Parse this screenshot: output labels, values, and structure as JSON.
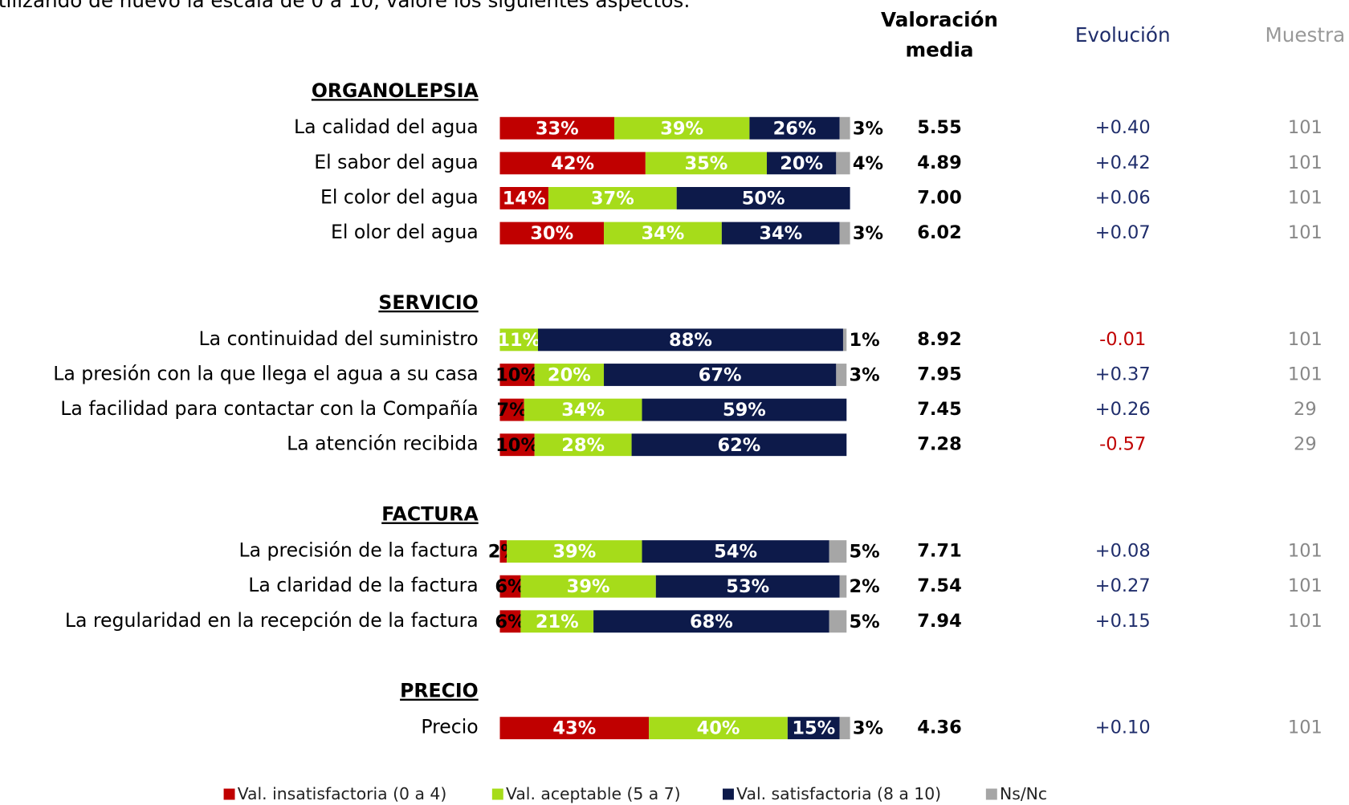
{
  "chart_data": {
    "type": "stacked_bar",
    "subtitle": "tilizando de nuevo la escala de 0 a 10, valore los siguientes aspectos:",
    "column_headers": {
      "mean": [
        "Valoración",
        "media"
      ],
      "evolution": "Evolución",
      "sample": "Muestra"
    },
    "xlim": [
      0,
      100
    ],
    "negative_color": "#c00000",
    "series": [
      {
        "name": "Val. insatisfactoria (0 a 4)",
        "color": "#c00000"
      },
      {
        "name": "Val. aceptable (5 a 7)",
        "color": "#a6dc1a"
      },
      {
        "name": "Val. satisfactoria (8 a 10)",
        "color": "#0d1a4a"
      },
      {
        "name": "Ns/Nc",
        "color": "#a6a6a6"
      }
    ],
    "groups": [
      {
        "title": "ORGANOLEPSIA",
        "categories": [
          "La calidad del agua",
          "El sabor del agua",
          "El color del agua",
          "El olor del agua"
        ],
        "series": [
          {
            "values": [
              33,
              42,
              14,
              30
            ],
            "value_labels": [
              "33%",
              "42%",
              "14%",
              "30%"
            ]
          },
          {
            "values": [
              39,
              35,
              37,
              34
            ],
            "value_labels": [
              "39%",
              "35%",
              "37%",
              "34%"
            ]
          },
          {
            "values": [
              26,
              20,
              50,
              34
            ],
            "value_labels": [
              "26%",
              "20%",
              "50%",
              "34%"
            ]
          },
          {
            "values": [
              3,
              4,
              0,
              3
            ],
            "value_labels": [
              "3%",
              "4%",
              null,
              "3%"
            ]
          }
        ],
        "mean": [
          "5.55",
          "4.89",
          "7.00",
          "6.02"
        ],
        "evolution": [
          "+0.40",
          "+0.42",
          "+0.06",
          "+0.07"
        ],
        "sample": [
          101,
          101,
          101,
          101
        ]
      },
      {
        "title": "SERVICIO",
        "categories": [
          "La continuidad del suministro",
          "La presión con la que llega el agua a su casa",
          "La facilidad para contactar con la Compañía",
          "La atención recibida"
        ],
        "series": [
          {
            "values": [
              0,
              10,
              7,
              10
            ],
            "value_labels": [
              null,
              "10%",
              "7%",
              "10%"
            ]
          },
          {
            "values": [
              11,
              20,
              34,
              28
            ],
            "value_labels": [
              "11%",
              "20%",
              "34%",
              "28%"
            ]
          },
          {
            "values": [
              88,
              67,
              59,
              62
            ],
            "value_labels": [
              "88%",
              "67%",
              "59%",
              "62%"
            ]
          },
          {
            "values": [
              1,
              3,
              0,
              0
            ],
            "value_labels": [
              "1%",
              "3%",
              null,
              null
            ]
          }
        ],
        "mean": [
          "8.92",
          "7.95",
          "7.45",
          "7.28"
        ],
        "evolution": [
          "-0.01",
          "+0.37",
          "+0.26",
          "-0.57"
        ],
        "sample": [
          101,
          101,
          29,
          29
        ]
      },
      {
        "title": "FACTURA",
        "categories": [
          "La precisión de la factura",
          "La claridad de la factura",
          "La regularidad en la recepción de la factura"
        ],
        "series": [
          {
            "values": [
              2,
              6,
              6
            ],
            "value_labels": [
              "2%",
              "6%",
              "6%"
            ]
          },
          {
            "values": [
              39,
              39,
              21
            ],
            "value_labels": [
              "39%",
              "39%",
              "21%"
            ]
          },
          {
            "values": [
              54,
              53,
              68
            ],
            "value_labels": [
              "54%",
              "53%",
              "68%"
            ]
          },
          {
            "values": [
              5,
              2,
              5
            ],
            "value_labels": [
              "5%",
              "2%",
              "5%"
            ]
          }
        ],
        "mean": [
          "7.71",
          "7.54",
          "7.94"
        ],
        "evolution": [
          "+0.08",
          "+0.27",
          "+0.15"
        ],
        "sample": [
          101,
          101,
          101
        ]
      },
      {
        "title": "PRECIO",
        "categories": [
          "Precio"
        ],
        "series": [
          {
            "values": [
              43
            ],
            "value_labels": [
              "43%"
            ]
          },
          {
            "values": [
              40
            ],
            "value_labels": [
              "40%"
            ]
          },
          {
            "values": [
              15
            ],
            "value_labels": [
              "15%"
            ]
          },
          {
            "values": [
              3
            ],
            "value_labels": [
              "3%"
            ]
          }
        ],
        "mean": [
          "4.36"
        ],
        "evolution": [
          "+0.10"
        ],
        "sample": [
          101
        ]
      }
    ]
  }
}
